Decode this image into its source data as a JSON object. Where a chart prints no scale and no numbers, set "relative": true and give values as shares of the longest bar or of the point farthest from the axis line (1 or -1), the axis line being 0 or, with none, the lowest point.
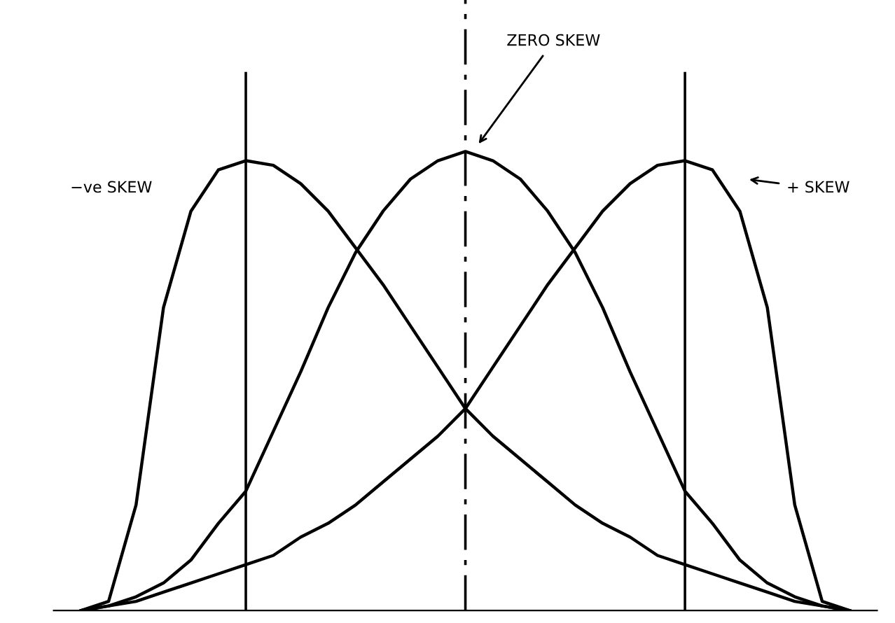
{
  "chart_data": {
    "type": "line",
    "relative": true,
    "categories": [
      null,
      null,
      null,
      null,
      null,
      null,
      null,
      null,
      null,
      null,
      null,
      null,
      null,
      null,
      null,
      null,
      null,
      null,
      null,
      null,
      null,
      null,
      null,
      null,
      null,
      null,
      null,
      null,
      null
    ],
    "series": [
      {
        "color": "#000000",
        "values": [
          0,
          0.02,
          0.23,
          0.66,
          0.87,
          0.96,
          0.98,
          0.97,
          0.93,
          0.87,
          0.79,
          0.71,
          0.62,
          0.53,
          0.44,
          0.38,
          0.33,
          0.28,
          0.23,
          0.19,
          0.16,
          0.12,
          0.1,
          0.08,
          0.06,
          0.04,
          0.02,
          0.01,
          0
        ]
      },
      {
        "color": "#000000",
        "values": [
          0,
          0.01,
          0.03,
          0.06,
          0.11,
          0.19,
          0.26,
          0.39,
          0.52,
          0.66,
          0.78,
          0.87,
          0.94,
          0.98,
          1,
          0.98,
          0.94,
          0.87,
          0.78,
          0.66,
          0.52,
          0.39,
          0.26,
          0.19,
          0.11,
          0.06,
          0.03,
          0.01,
          0
        ]
      },
      {
        "color": "#000000",
        "values": [
          0,
          0.01,
          0.02,
          0.04,
          0.06,
          0.08,
          0.1,
          0.12,
          0.16,
          0.19,
          0.23,
          0.28,
          0.33,
          0.38,
          0.44,
          0.53,
          0.62,
          0.71,
          0.79,
          0.87,
          0.93,
          0.97,
          0.98,
          0.96,
          0.87,
          0.66,
          0.23,
          0.02,
          0
        ]
      }
    ],
    "annotations": [
      "ZERO SKEW",
      "−ve SKEW",
      "+ SKEW"
    ],
    "marker": "none",
    "line_style": "solid"
  }
}
